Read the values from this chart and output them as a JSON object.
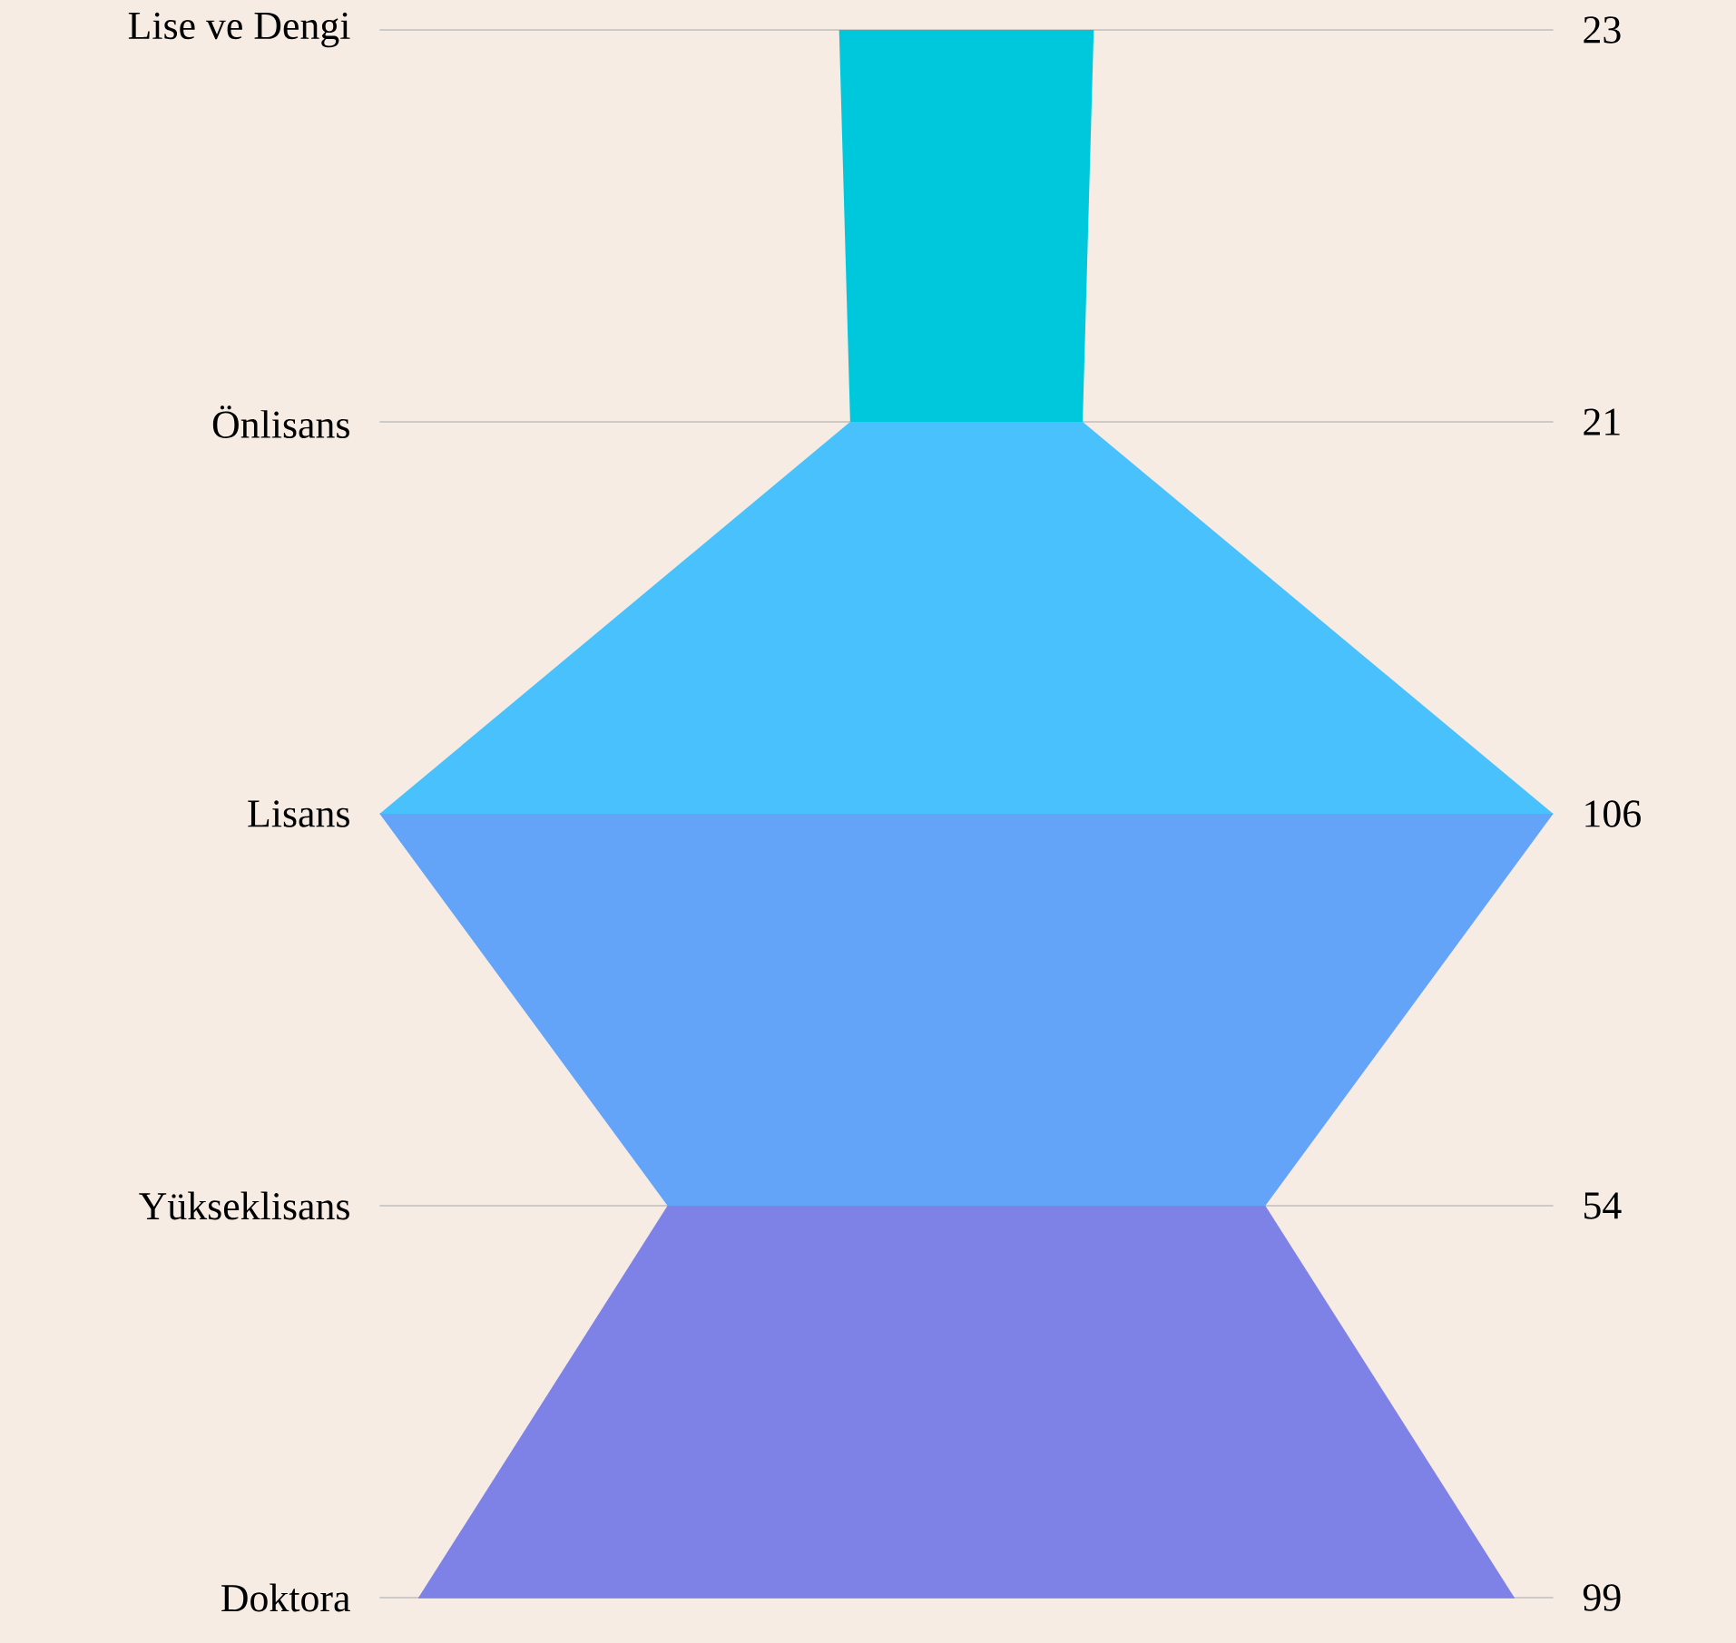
{
  "chart_data": {
    "type": "other",
    "categories": [
      "Lise ve Dengi",
      "Önlisans",
      "Lisans",
      "Yükseklisans",
      "Doktora"
    ],
    "values": [
      23,
      21,
      106,
      54,
      99
    ],
    "colors": [
      "#00c8dc",
      "#48c1fc",
      "#64a4f8",
      "#7e81e6",
      "#7e81e6"
    ],
    "data_labels": true
  }
}
